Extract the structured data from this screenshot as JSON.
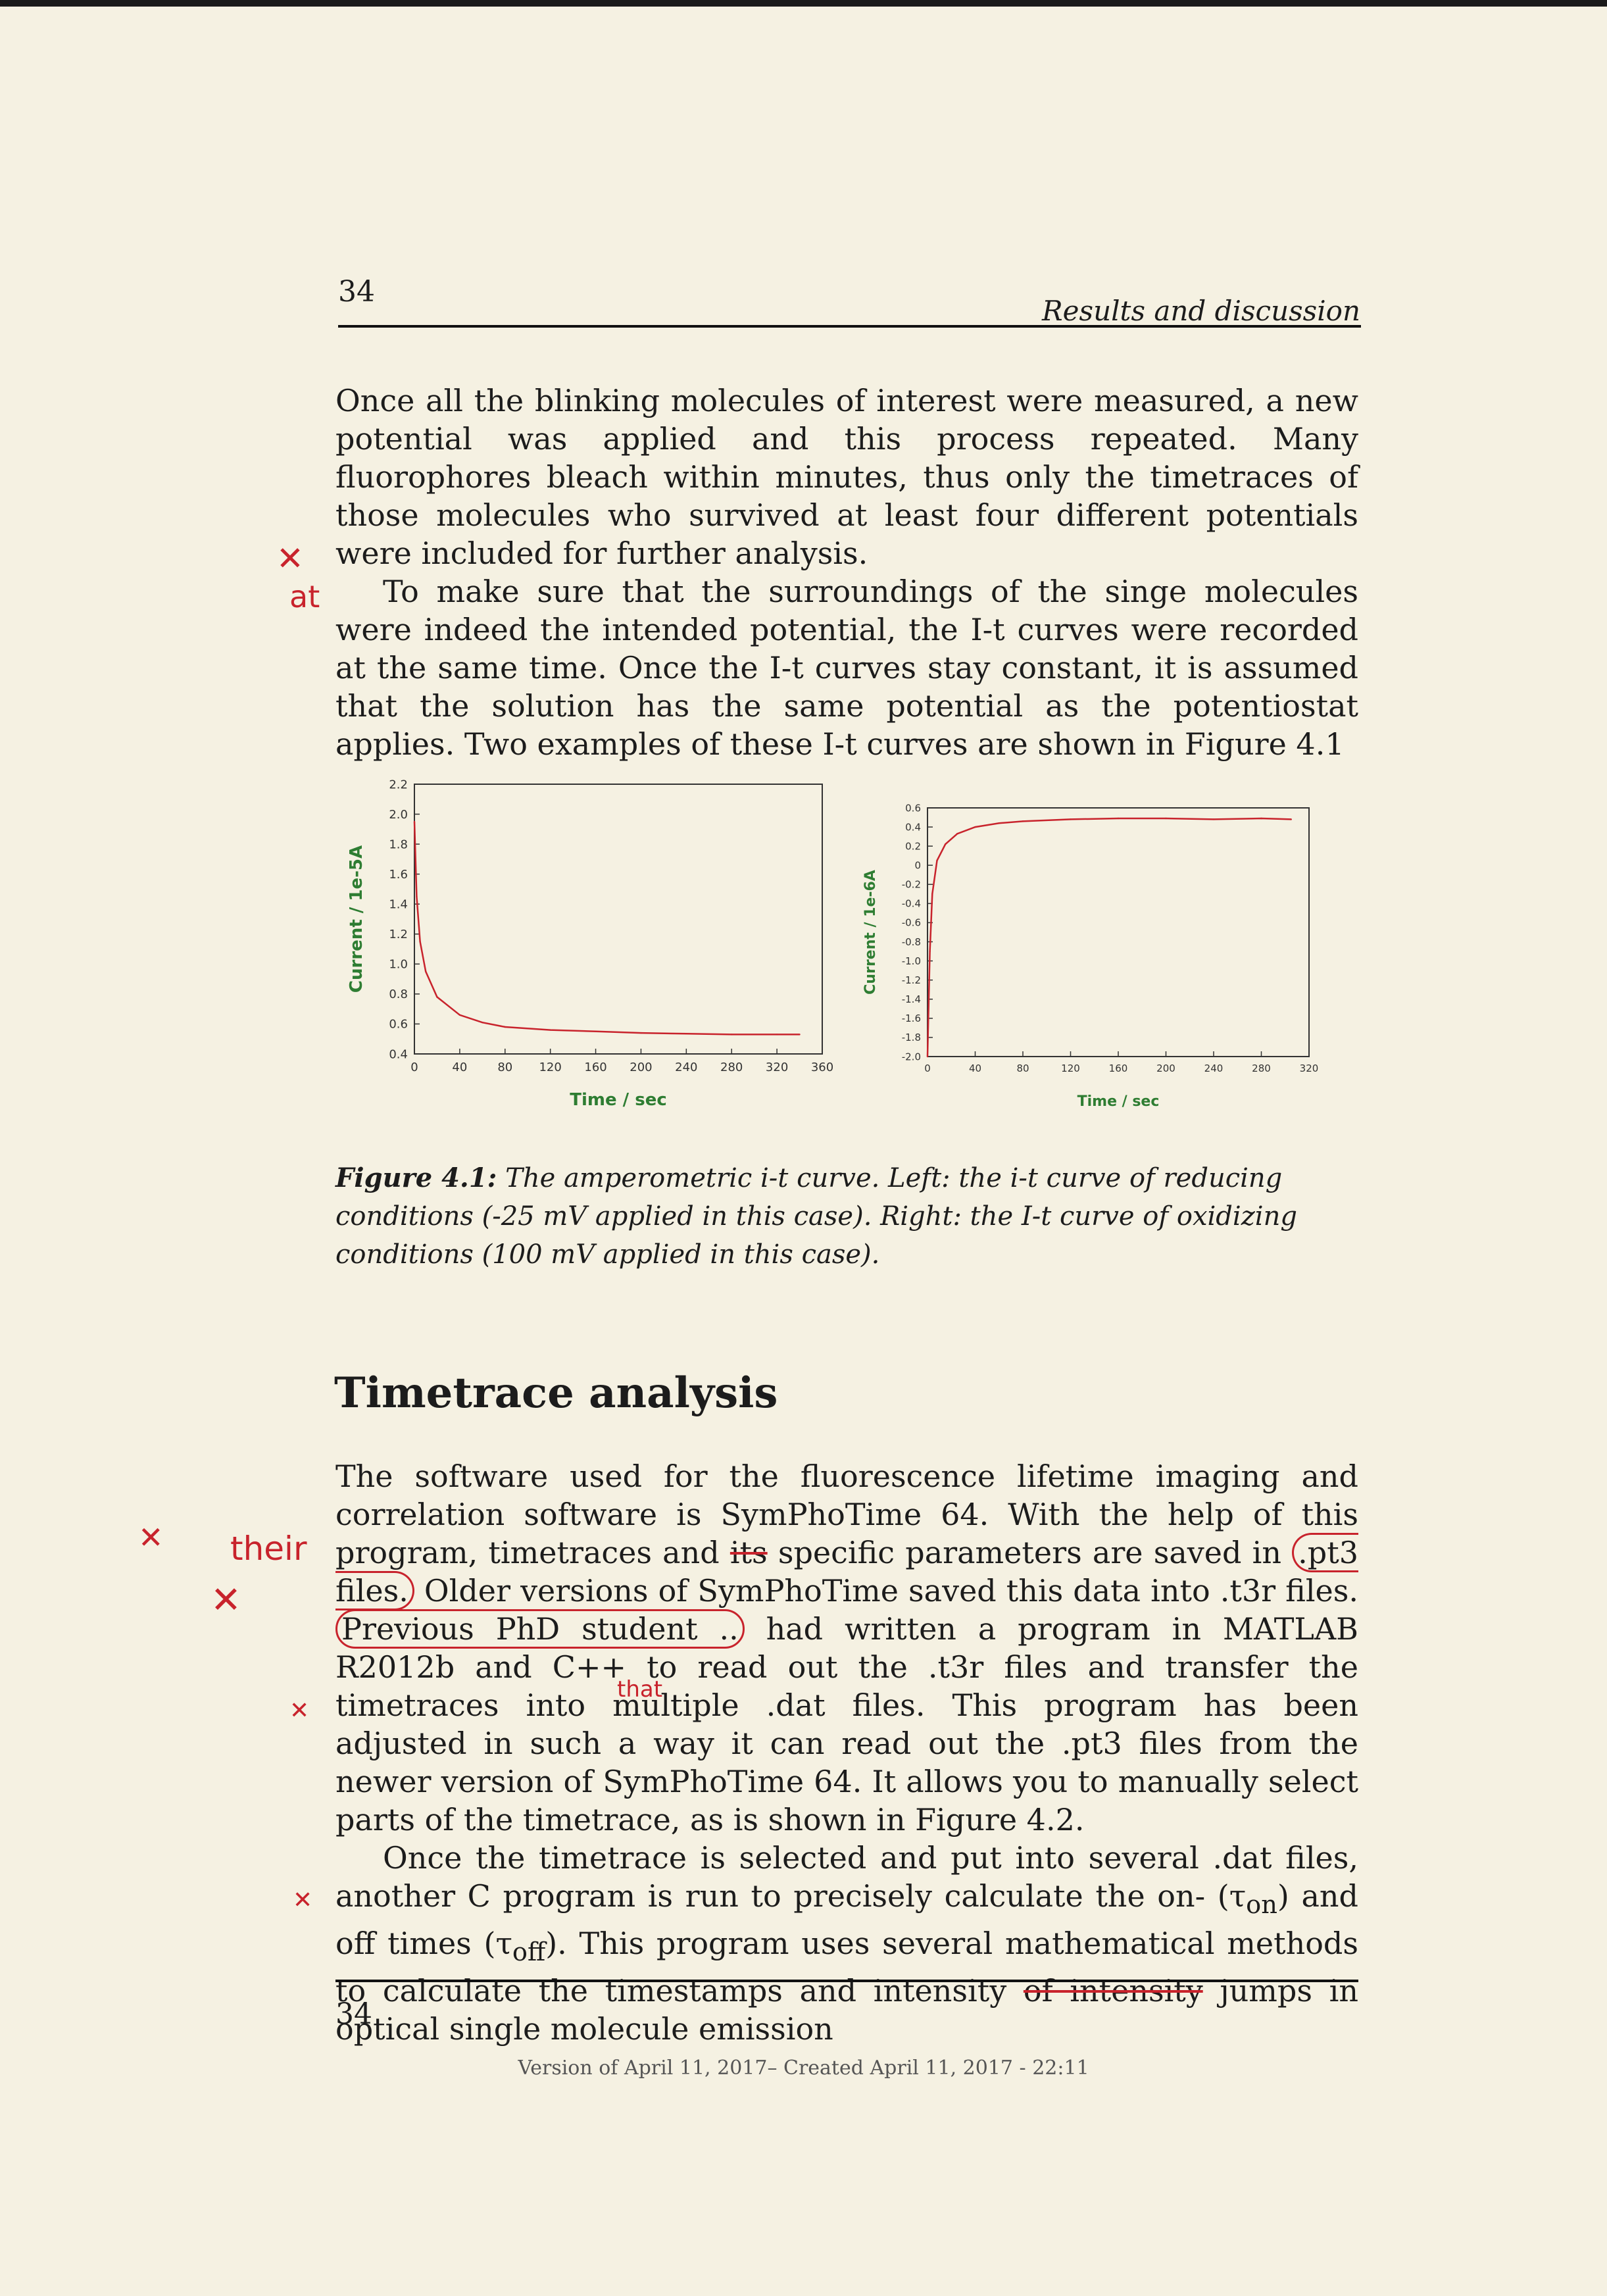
{
  "header": {
    "page_number": "34",
    "running_title": "Results and discussion"
  },
  "body": {
    "p1": "Once all the blinking molecules of interest were measured, a new potential was applied and this process repeated. Many fluorophores bleach within minutes, thus only the timetraces of those molecules who survived at least four different potentials were included for further analysis.",
    "p2": "To make sure that the surroundings of the singe molecules were indeed the intended potential, the I-t curves were recorded at the same time. Once the I-t curves stay constant, it is assumed that the solution has the same potential as the potentiostat applies. Two examples of these I-t curves are shown in Figure 4.1"
  },
  "figure": {
    "label": "Figure 4.1:",
    "caption": "The amperometric i-t curve. Left: the i-t curve of reducing conditions (-25 mV applied in this case). Right: the I-t curve of oxidizing conditions (100 mV applied in this case)."
  },
  "chart_data": [
    {
      "type": "line",
      "xlabel": "Time / sec",
      "ylabel": "Current / 1e-5A",
      "xlim": [
        0,
        360
      ],
      "ylim": [
        0.4,
        2.2
      ],
      "xticks": [
        "0",
        "40",
        "80",
        "120",
        "160",
        "200",
        "240",
        "280",
        "320",
        "360"
      ],
      "yticks": [
        "2.2",
        "2.0",
        "1.8",
        "1.6",
        "1.4",
        "1.2",
        "1.0",
        "0.8",
        "0.6",
        "0.4"
      ],
      "x": [
        0,
        2,
        5,
        10,
        20,
        40,
        60,
        80,
        120,
        160,
        200,
        240,
        280,
        320,
        340
      ],
      "y": [
        1.95,
        1.45,
        1.15,
        0.95,
        0.78,
        0.66,
        0.61,
        0.58,
        0.56,
        0.55,
        0.54,
        0.535,
        0.53,
        0.53,
        0.53
      ],
      "series_color": "#c8232c"
    },
    {
      "type": "line",
      "xlabel": "Time / sec",
      "ylabel": "Current / 1e-6A",
      "xlim": [
        0,
        320
      ],
      "ylim": [
        -2.0,
        0.6
      ],
      "xticks": [
        "0",
        "40",
        "80",
        "120",
        "160",
        "200",
        "240",
        "280",
        "320"
      ],
      "yticks": [
        "0.6",
        "0.4",
        "0.2",
        "0",
        "-0.2",
        "-0.4",
        "-0.6",
        "-0.8",
        "-1.0",
        "-1.2",
        "-1.4",
        "-1.6",
        "-1.8",
        "-2.0"
      ],
      "x": [
        0,
        2,
        4,
        8,
        15,
        25,
        40,
        60,
        80,
        120,
        160,
        200,
        240,
        280,
        305
      ],
      "y": [
        -2.0,
        -0.9,
        -0.3,
        0.05,
        0.22,
        0.33,
        0.4,
        0.44,
        0.46,
        0.48,
        0.49,
        0.49,
        0.48,
        0.49,
        0.48
      ],
      "series_color": "#c8232c"
    }
  ],
  "section": {
    "title": "Timetrace analysis"
  },
  "body2": {
    "p3a": "The software used for the fluorescence lifetime imaging and correlation software is SymPhoTime 64. With the help of this program, timetraces and ",
    "p3_its": "its",
    "p3b": " specific parameters are saved in ",
    "p3_pt3": ".pt3 files.",
    "p3c": " Older versions of SymPhoTime saved this data into .t3r files. ",
    "p3_prev": "Previous PhD student ..",
    "p3d": " had written a program in MATLAB R2012b and C++ to read out the .t3r files and transfer the timetraces into multiple .dat files. This program has been adjusted in such a way it can read out the .pt3 files from the newer version of SymPhoTime 64. It allows you to manually select parts of the timetrace, as is shown in Figure 4.2.",
    "p4a": "Once the timetrace is selected and put into several .dat files, another C program is run to precisely calculate the on- (τ",
    "p4_on": "on",
    "p4b": ") and off times (τ",
    "p4_off": "off",
    "p4c": "). This program uses several mathematical methods to calculate the timestamps and intensity ",
    "p4_strike": "of intensity",
    "p4d": " jumps in optical single molecule emission"
  },
  "annotations": {
    "at": "at",
    "their": "their",
    "that": "that"
  },
  "footer": {
    "page_number": "34",
    "version": "Version of April 11, 2017– Created April 11, 2017 - 22:11"
  }
}
